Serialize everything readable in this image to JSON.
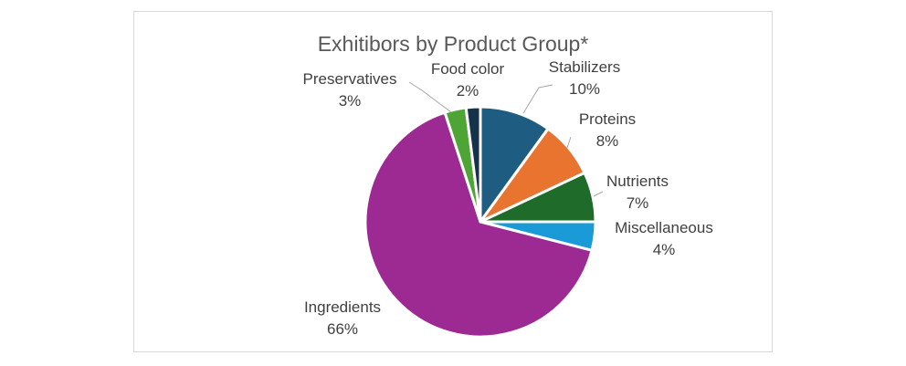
{
  "chart_data": {
    "type": "pie",
    "title": "Exhitibors by Product Group*",
    "legend": "none",
    "slices": [
      {
        "label": "Stabilizers",
        "value": 10,
        "display": "10%",
        "color": "#1f5c82"
      },
      {
        "label": "Proteins",
        "value": 8,
        "display": "8%",
        "color": "#e8742f"
      },
      {
        "label": "Nutrients",
        "value": 7,
        "display": "7%",
        "color": "#1e6b2a"
      },
      {
        "label": "Miscellaneous",
        "value": 4,
        "display": "4%",
        "color": "#1a9bd7"
      },
      {
        "label": "Ingredients",
        "value": 66,
        "display": "66%",
        "color": "#9c2a92"
      },
      {
        "label": "Preservatives",
        "value": 3,
        "display": "3%",
        "color": "#4ea535"
      },
      {
        "label": "Food color",
        "value": 2,
        "display": "2%",
        "color": "#16324a"
      }
    ]
  }
}
